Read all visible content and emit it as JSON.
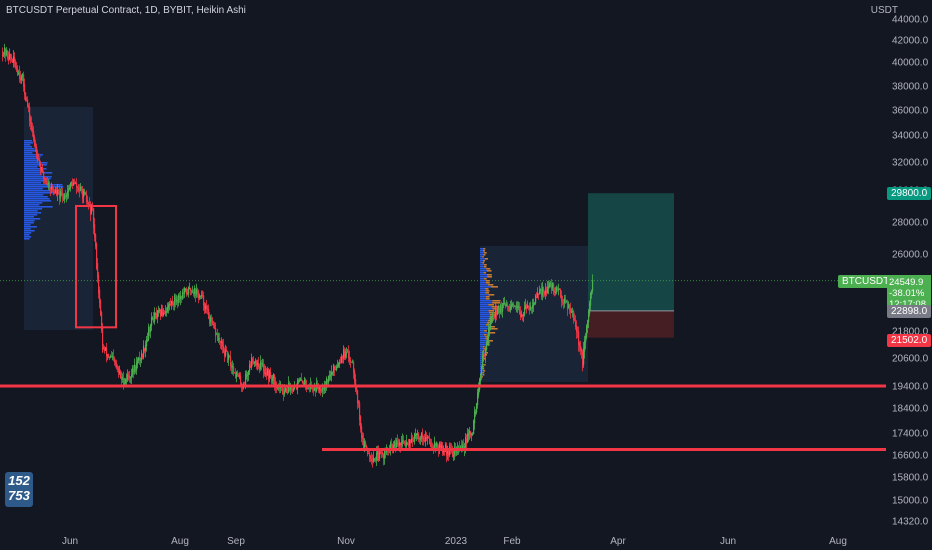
{
  "header": {
    "title": "BTCUSDT Perpetual Contract, 1D, BYBIT, Heikin Ashi",
    "currency": "USDT"
  },
  "badge": {
    "line1": "152",
    "line2": "753"
  },
  "price_labels": {
    "symbol": "BTCUSDT.P",
    "last": "24549.9",
    "change": "-38.01%",
    "countdown": "12:17:08",
    "target": "29800.0",
    "entry": "22898.0",
    "stop": "21502.0"
  },
  "colors": {
    "background": "#131722",
    "up": "#4caf50",
    "down": "#f23645",
    "level_line": "#f23645",
    "target_zone": "#164a48",
    "stop_zone": "#4a1f24",
    "profile_blue": "#2962ff",
    "profile_orange": "#e68a2e"
  },
  "chart_data": {
    "type": "candlestick",
    "style": "Heikin Ashi",
    "y_ticks": [
      "44000.0",
      "42000.0",
      "40000.0",
      "38000.0",
      "36000.0",
      "34000.0",
      "32000.0",
      "30000.0",
      "28000.0",
      "26000.0",
      "21800.0",
      "20600.0",
      "19400.0",
      "18400.0",
      "17400.0",
      "16600.0",
      "15800.0",
      "15000.0",
      "14320.0"
    ],
    "x_ticks": [
      "Jun",
      "Aug",
      "Sep",
      "Nov",
      "2023",
      "Feb",
      "Apr",
      "Jun",
      "Aug"
    ],
    "horizontal_levels": [
      19400,
      16800
    ],
    "position": {
      "entry": 22898.0,
      "target": 29800.0,
      "stop": 21502.0,
      "last": 24549.9
    },
    "rectangle_marker": {
      "from": "Jun",
      "price_range": [
        22000,
        29000
      ]
    },
    "key_path": [
      [
        0,
        41000
      ],
      [
        10,
        40200
      ],
      [
        20,
        38500
      ],
      [
        30,
        34000
      ],
      [
        40,
        31000
      ],
      [
        50,
        30000
      ],
      [
        60,
        29500
      ],
      [
        70,
        30500
      ],
      [
        80,
        29800
      ],
      [
        90,
        28500
      ],
      [
        100,
        21000
      ],
      [
        110,
        20500
      ],
      [
        120,
        19600
      ],
      [
        130,
        20000
      ],
      [
        140,
        20800
      ],
      [
        150,
        22500
      ],
      [
        160,
        22800
      ],
      [
        170,
        23400
      ],
      [
        180,
        23800
      ],
      [
        190,
        24100
      ],
      [
        200,
        23500
      ],
      [
        210,
        22000
      ],
      [
        220,
        21000
      ],
      [
        230,
        20200
      ],
      [
        240,
        19400
      ],
      [
        250,
        20600
      ],
      [
        260,
        20200
      ],
      [
        270,
        19700
      ],
      [
        280,
        19200
      ],
      [
        290,
        19400
      ],
      [
        300,
        19600
      ],
      [
        310,
        19300
      ],
      [
        320,
        19400
      ],
      [
        330,
        20000
      ],
      [
        340,
        20800
      ],
      [
        350,
        20500
      ],
      [
        360,
        17000
      ],
      [
        370,
        16500
      ],
      [
        380,
        16600
      ],
      [
        390,
        16900
      ],
      [
        400,
        17000
      ],
      [
        410,
        17200
      ],
      [
        420,
        17300
      ],
      [
        430,
        17000
      ],
      [
        440,
        16800
      ],
      [
        450,
        16700
      ],
      [
        460,
        16900
      ],
      [
        470,
        17500
      ],
      [
        480,
        20500
      ],
      [
        490,
        22700
      ],
      [
        500,
        23100
      ],
      [
        510,
        23000
      ],
      [
        520,
        22800
      ],
      [
        530,
        23300
      ],
      [
        540,
        24000
      ],
      [
        550,
        24200
      ],
      [
        560,
        23600
      ],
      [
        570,
        22900
      ],
      [
        575,
        21600
      ],
      [
        580,
        20400
      ],
      [
        585,
        22300
      ],
      [
        590,
        24500
      ]
    ]
  }
}
